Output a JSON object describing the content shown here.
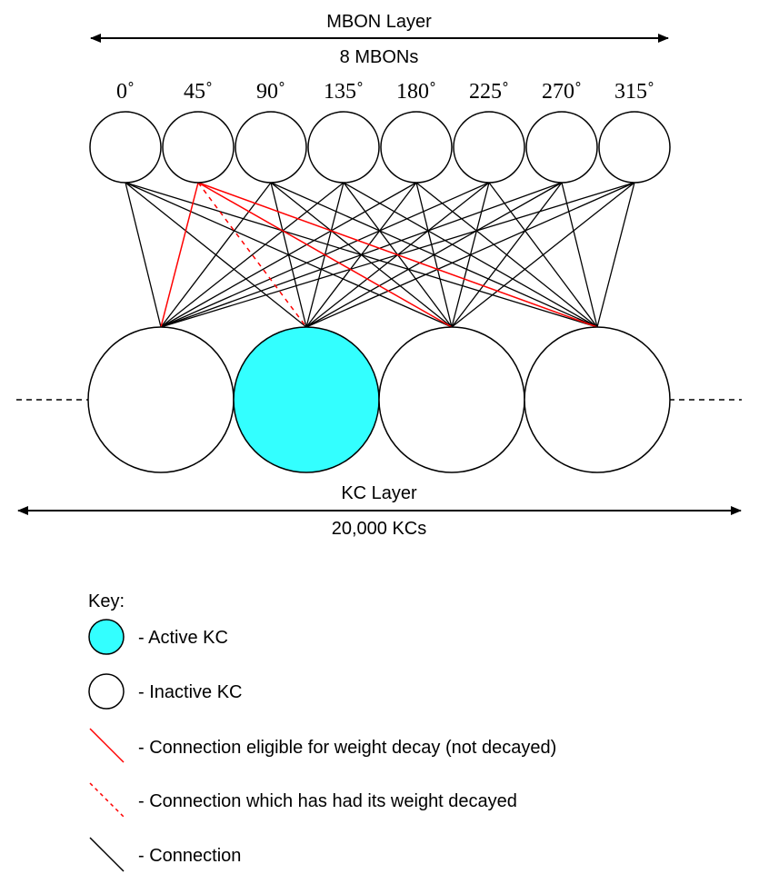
{
  "mbon_layer": {
    "title": "MBON Layer",
    "count_label": "8 MBONs",
    "angles": [
      "0˚",
      "45˚",
      "90˚",
      "135˚",
      "180˚",
      "225˚",
      "270˚",
      "315˚"
    ]
  },
  "kc_layer": {
    "title": "KC Layer",
    "count_label": "20,000 KCs",
    "cells": [
      {
        "state": "inactive"
      },
      {
        "state": "active"
      },
      {
        "state": "inactive"
      },
      {
        "state": "inactive"
      }
    ]
  },
  "colors": {
    "active": "#33ffff",
    "eligible": "#ff0000",
    "connection": "#000000"
  },
  "key": {
    "title": "Key:",
    "active_kc": "- Active KC",
    "inactive_kc": "- Inactive KC",
    "eligible": "- Connection eligible for weight decay (not decayed)",
    "decayed": "- Connection which has had its weight decayed",
    "connection": "- Connection"
  }
}
